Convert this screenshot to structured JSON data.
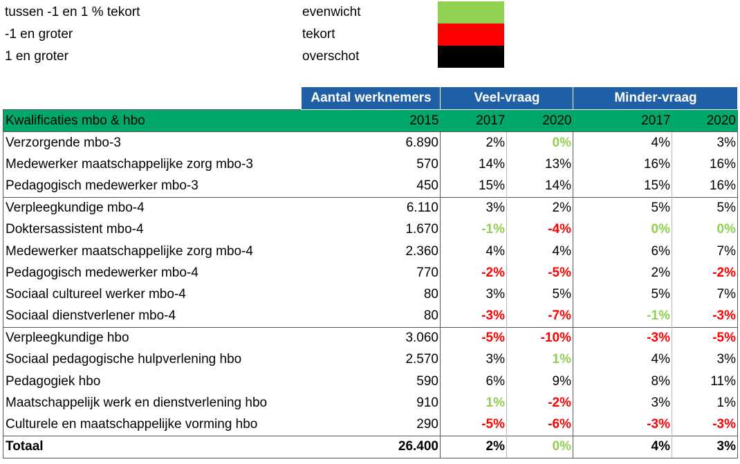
{
  "legend": [
    {
      "label": "tussen -1 en 1 % tekort",
      "meaning": "evenwicht",
      "color": "#92d050"
    },
    {
      "label": "-1 en groter",
      "meaning": "tekort",
      "color": "#ff0000"
    },
    {
      "label": "1 en groter",
      "meaning": "overschot",
      "color": "#000000"
    }
  ],
  "header": {
    "aantal": "Aantal werknemers",
    "veel": "Veel-vraag",
    "minder": "Minder-vraag",
    "kwalificaties": "Kwalificaties mbo & hbo",
    "y2015": "2015",
    "veel_2017": "2017",
    "veel_2020": "2020",
    "minder_2017": "2017",
    "minder_2020": "2020"
  },
  "rows": [
    {
      "name": "Verzorgende mbo-3",
      "n2015": "6.890",
      "v17": "2%",
      "v17c": "black",
      "v20": "0%",
      "v20c": "green",
      "m17": "4%",
      "m17c": "black",
      "m20": "3%",
      "m20c": "black",
      "group_start": true
    },
    {
      "name": "Medewerker maatschappelijke zorg mbo-3",
      "n2015": "570",
      "v17": "14%",
      "v17c": "black",
      "v20": "13%",
      "v20c": "black",
      "m17": "16%",
      "m17c": "black",
      "m20": "16%",
      "m20c": "black"
    },
    {
      "name": "Pedagogisch medewerker mbo-3",
      "n2015": "450",
      "v17": "15%",
      "v17c": "black",
      "v20": "14%",
      "v20c": "black",
      "m17": "15%",
      "m17c": "black",
      "m20": "16%",
      "m20c": "black"
    },
    {
      "name": "Verpleegkundige mbo-4",
      "n2015": "6.110",
      "v17": "3%",
      "v17c": "black",
      "v20": "2%",
      "v20c": "black",
      "m17": "5%",
      "m17c": "black",
      "m20": "5%",
      "m20c": "black",
      "group_start": true
    },
    {
      "name": "Doktersassistent mbo-4",
      "n2015": "1.670",
      "v17": "-1%",
      "v17c": "green",
      "v20": "-4%",
      "v20c": "red",
      "m17": "0%",
      "m17c": "green",
      "m20": "0%",
      "m20c": "green"
    },
    {
      "name": "Medewerker maatschappelijke zorg mbo-4",
      "n2015": "2.360",
      "v17": "4%",
      "v17c": "black",
      "v20": "4%",
      "v20c": "black",
      "m17": "6%",
      "m17c": "black",
      "m20": "7%",
      "m20c": "black"
    },
    {
      "name": "Pedagogisch medewerker mbo-4",
      "n2015": "770",
      "v17": "-2%",
      "v17c": "red",
      "v20": "-5%",
      "v20c": "red",
      "m17": "2%",
      "m17c": "black",
      "m20": "-2%",
      "m20c": "red"
    },
    {
      "name": "Sociaal cultureel werker mbo-4",
      "n2015": "80",
      "v17": "3%",
      "v17c": "black",
      "v20": "5%",
      "v20c": "black",
      "m17": "5%",
      "m17c": "black",
      "m20": "7%",
      "m20c": "black"
    },
    {
      "name": "Sociaal dienstverlener mbo-4",
      "n2015": "80",
      "v17": "-3%",
      "v17c": "red",
      "v20": "-7%",
      "v20c": "red",
      "m17": "-1%",
      "m17c": "green",
      "m20": "-3%",
      "m20c": "red"
    },
    {
      "name": "Verpleegkundige hbo",
      "n2015": "3.060",
      "v17": "-5%",
      "v17c": "red",
      "v20": "-10%",
      "v20c": "red",
      "m17": "-3%",
      "m17c": "red",
      "m20": "-5%",
      "m20c": "red",
      "group_start": true
    },
    {
      "name": "Sociaal pedagogische hulpverlening hbo",
      "n2015": "2.570",
      "v17": "3%",
      "v17c": "black",
      "v20": "1%",
      "v20c": "green",
      "m17": "4%",
      "m17c": "black",
      "m20": "3%",
      "m20c": "black"
    },
    {
      "name": "Pedagogiek hbo",
      "n2015": "590",
      "v17": "6%",
      "v17c": "black",
      "v20": "9%",
      "v20c": "black",
      "m17": "8%",
      "m17c": "black",
      "m20": "11%",
      "m20c": "black"
    },
    {
      "name": "Maatschappelijk werk en dienstverlening hbo",
      "n2015": "910",
      "v17": "1%",
      "v17c": "green",
      "v20": "-2%",
      "v20c": "red",
      "m17": "3%",
      "m17c": "black",
      "m20": "1%",
      "m20c": "black"
    },
    {
      "name": "Culturele en maatschappelijke vorming hbo",
      "n2015": "290",
      "v17": "-5%",
      "v17c": "red",
      "v20": "-6%",
      "v20c": "red",
      "m17": "-3%",
      "m17c": "red",
      "m20": "-3%",
      "m20c": "red"
    }
  ],
  "total": {
    "name": "Totaal",
    "n2015": "26.400",
    "v17": "2%",
    "v17c": "black",
    "v20": "0%",
    "v20c": "green",
    "m17": "4%",
    "m17c": "black",
    "m20": "3%",
    "m20c": "black"
  }
}
